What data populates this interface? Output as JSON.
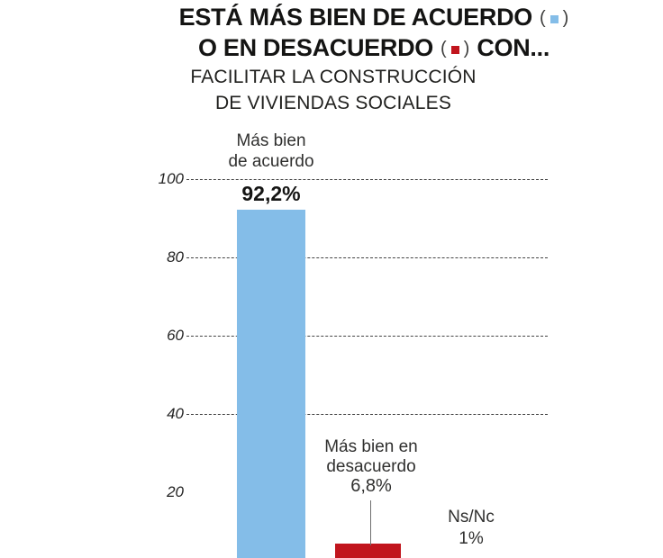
{
  "title": {
    "line1_text": "ESTÁ MÁS BIEN DE ACUERDO",
    "line2_text": "O EN DESACUERDO",
    "line2_suffix": "CON...",
    "paren_open": "(",
    "paren_close": ")"
  },
  "subtitle": {
    "line1": "FACILITAR LA CONSTRUCCIÓN",
    "line2": "DE VIVIENDAS SOCIALES"
  },
  "colors": {
    "agree": "#84bde8",
    "disagree": "#c1151d",
    "grid": "#454545",
    "title_text": "#141413"
  },
  "chart_data": {
    "type": "bar",
    "title": "ESTÁ MÁS BIEN DE ACUERDO O EN DESACUERDO CON...",
    "subtitle": "FACILITAR LA CONSTRUCCIÓN DE VIVIENDAS SOCIALES",
    "categories": [
      "Más bien de acuerdo",
      "Más bien en desacuerdo",
      "Ns/Nc"
    ],
    "category_lines": [
      [
        "Más bien",
        "de acuerdo"
      ],
      [
        "Más bien en",
        "desacuerdo"
      ],
      [
        "Ns/Nc"
      ]
    ],
    "values": [
      92.2,
      6.8,
      1
    ],
    "value_labels": [
      "92,2%",
      "6,8%",
      "1%"
    ],
    "series_colors": [
      "#84bde8",
      "#c1151d",
      null
    ],
    "xlabel": "",
    "ylabel": "",
    "ylim": [
      0,
      100
    ],
    "yticks": [
      100,
      80,
      60,
      40,
      20
    ],
    "gridline_ticks": [
      100,
      80,
      60,
      40
    ],
    "grid": "horizontal-dashed",
    "legend_position": "inline-in-title"
  }
}
